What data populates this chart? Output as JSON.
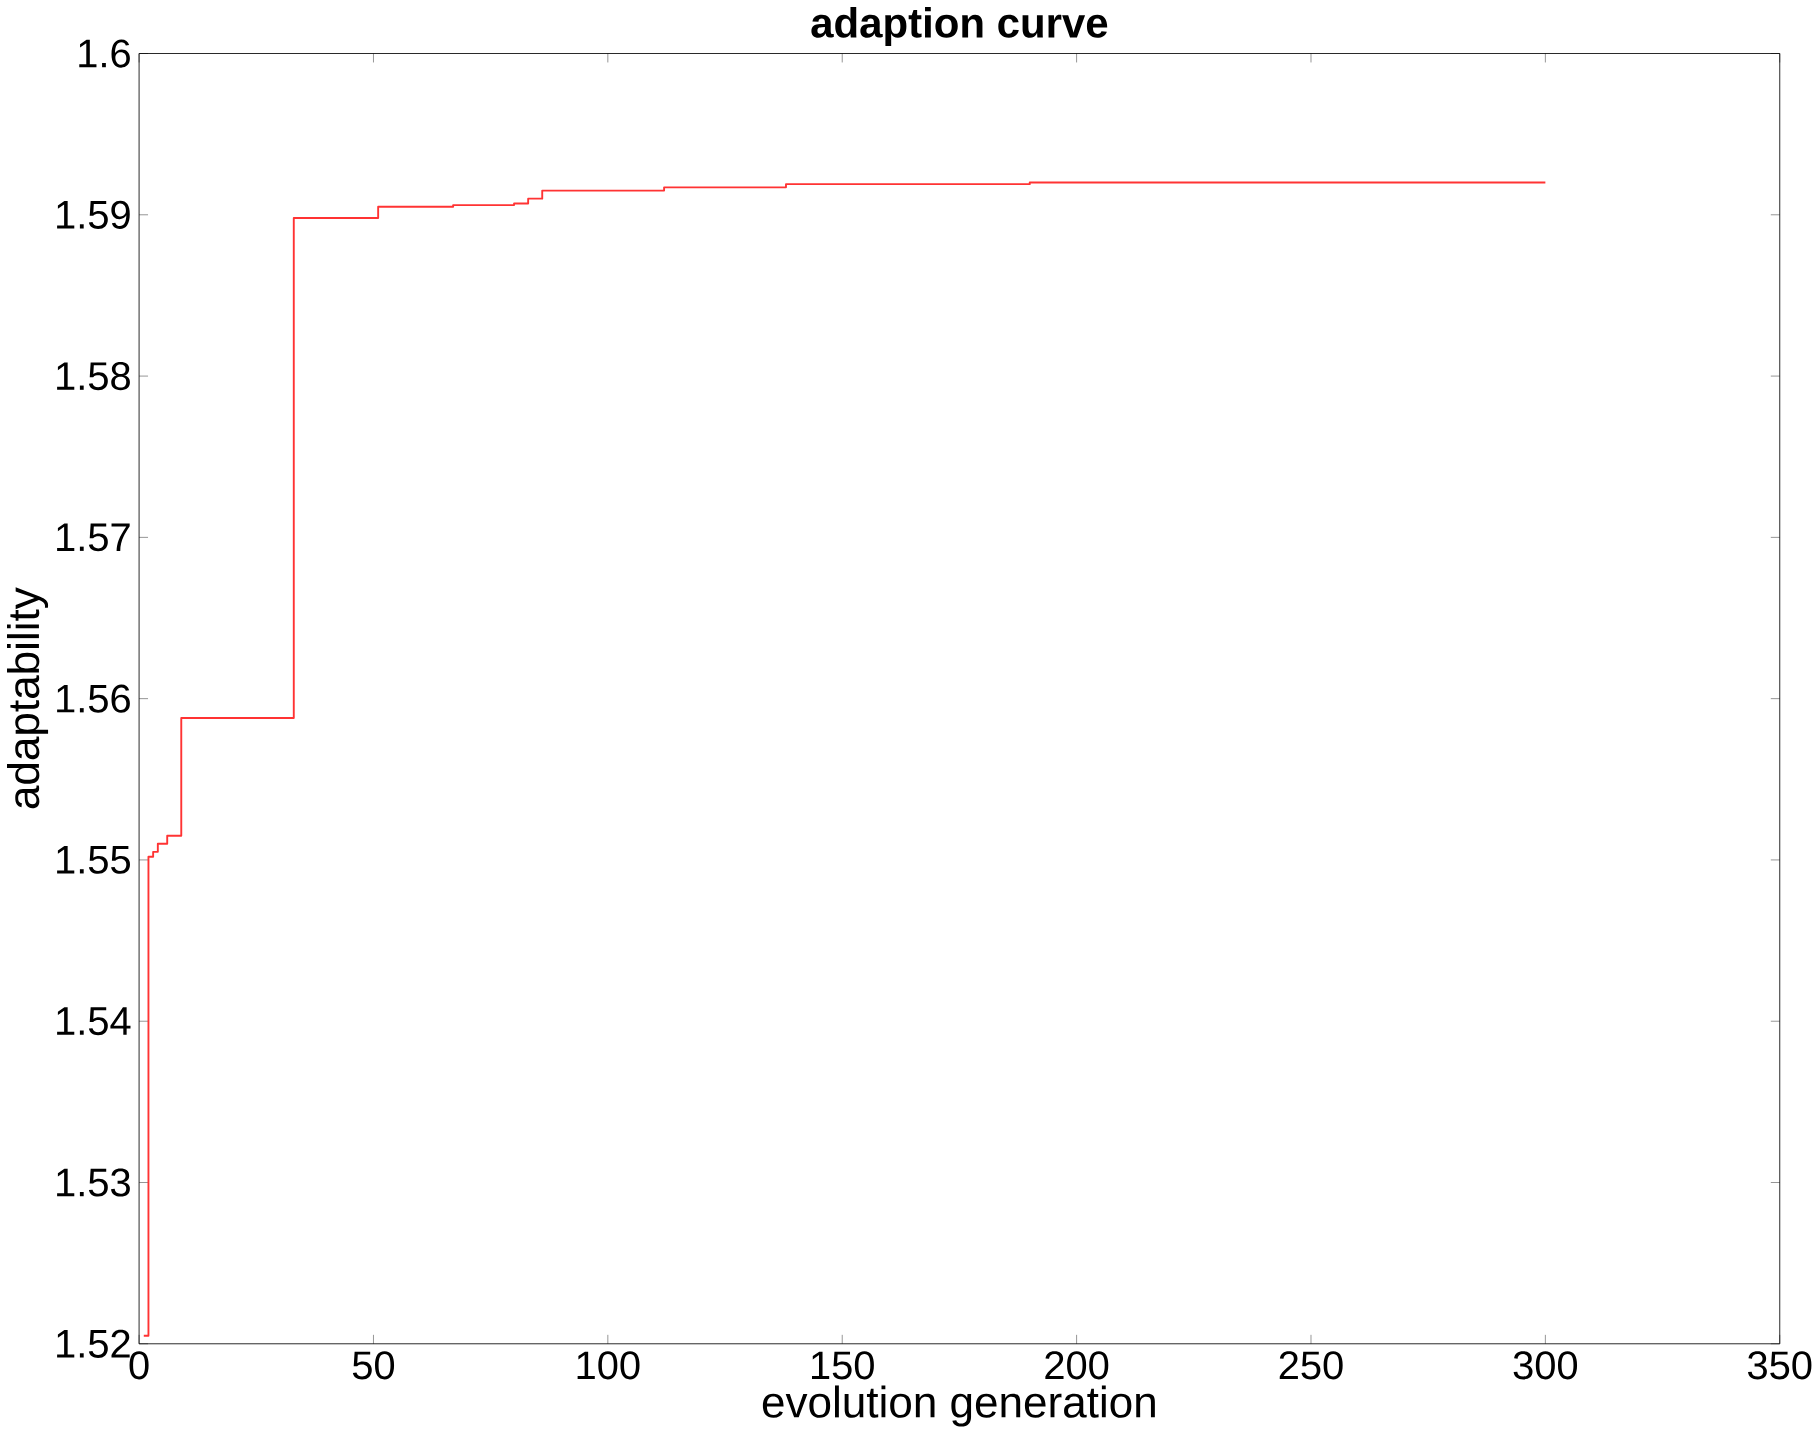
{
  "chart_data": {
    "type": "step",
    "title": "adaption curve",
    "xlabel": "evolution generation",
    "ylabel": "adaptability",
    "xlim": [
      0,
      350
    ],
    "xticks": [
      0,
      50,
      100,
      150,
      200,
      250,
      300,
      350
    ],
    "ylim": [
      1.52,
      1.6
    ],
    "yticks": [
      1.52,
      1.53,
      1.54,
      1.55,
      1.56,
      1.57,
      1.58,
      1.59,
      1.6
    ],
    "grid": false,
    "series": [
      {
        "color": "#ff3333",
        "x": [
          1,
          2,
          3,
          4,
          6,
          8,
          9,
          32,
          33,
          50,
          51,
          67,
          80,
          83,
          86,
          112,
          138,
          190,
          300
        ],
        "values": [
          1.5205,
          1.5502,
          1.5505,
          1.551,
          1.5515,
          1.5515,
          1.5588,
          1.5588,
          1.5898,
          1.5898,
          1.5905,
          1.5906,
          1.5907,
          1.591,
          1.5915,
          1.5917,
          1.5919,
          1.592,
          1.592
        ]
      }
    ]
  }
}
